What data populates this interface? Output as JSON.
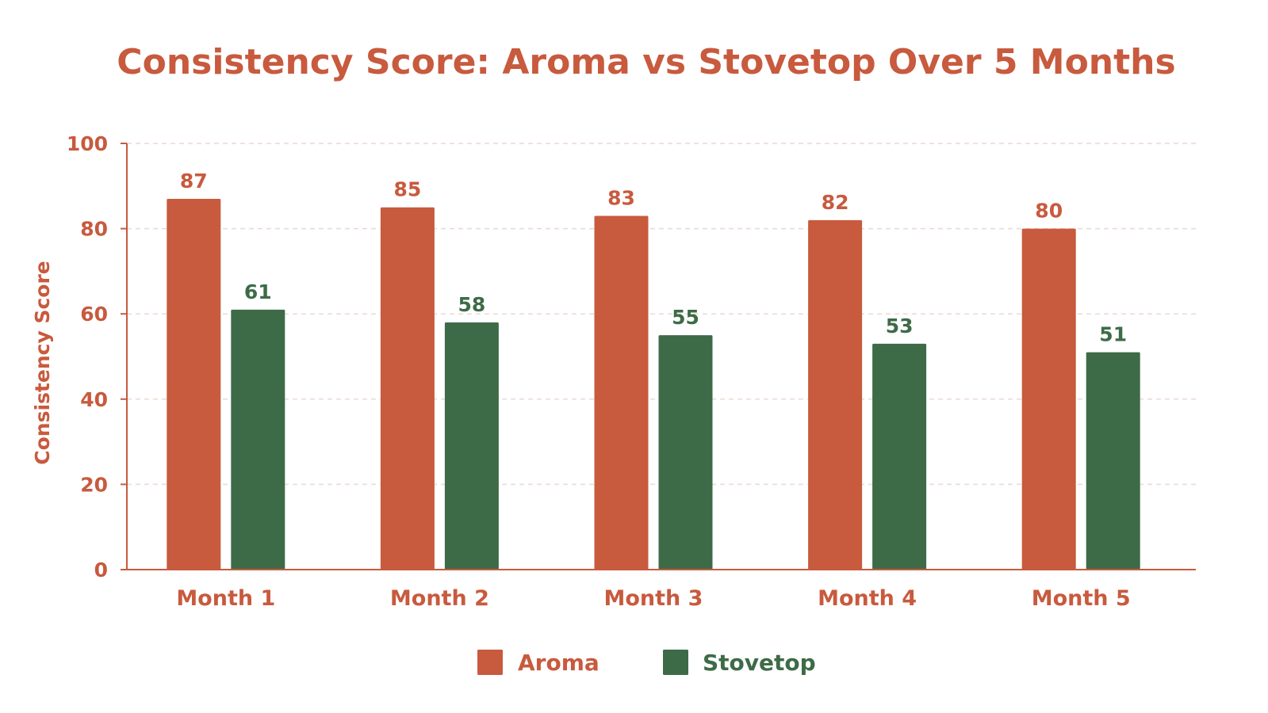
{
  "chart_data": {
    "type": "bar",
    "title": "Consistency Score: Aroma vs Stovetop Over 5 Months",
    "xlabel": "",
    "ylabel": "Consistency Score",
    "ylim": [
      0,
      100
    ],
    "yticks": [
      "0",
      "20",
      "40",
      "60",
      "80",
      "100"
    ],
    "grid": true,
    "legend_position": "bottom",
    "categories": [
      "Month 1",
      "Month 2",
      "Month 3",
      "Month 4",
      "Month 5"
    ],
    "series": [
      {
        "name": "Aroma",
        "color": "#C85A3E",
        "values": [
          87,
          85,
          83,
          82,
          80
        ],
        "labels": [
          "87",
          "85",
          "83",
          "82",
          "80"
        ]
      },
      {
        "name": "Stovetop",
        "color": "#3D6B47",
        "values": [
          61,
          58,
          55,
          53,
          51
        ],
        "labels": [
          "61",
          "58",
          "55",
          "53",
          "51"
        ]
      }
    ],
    "colors": {
      "text": "#C85A3E",
      "axis": "#C85A3E",
      "grid": "#EAD9D3"
    }
  }
}
